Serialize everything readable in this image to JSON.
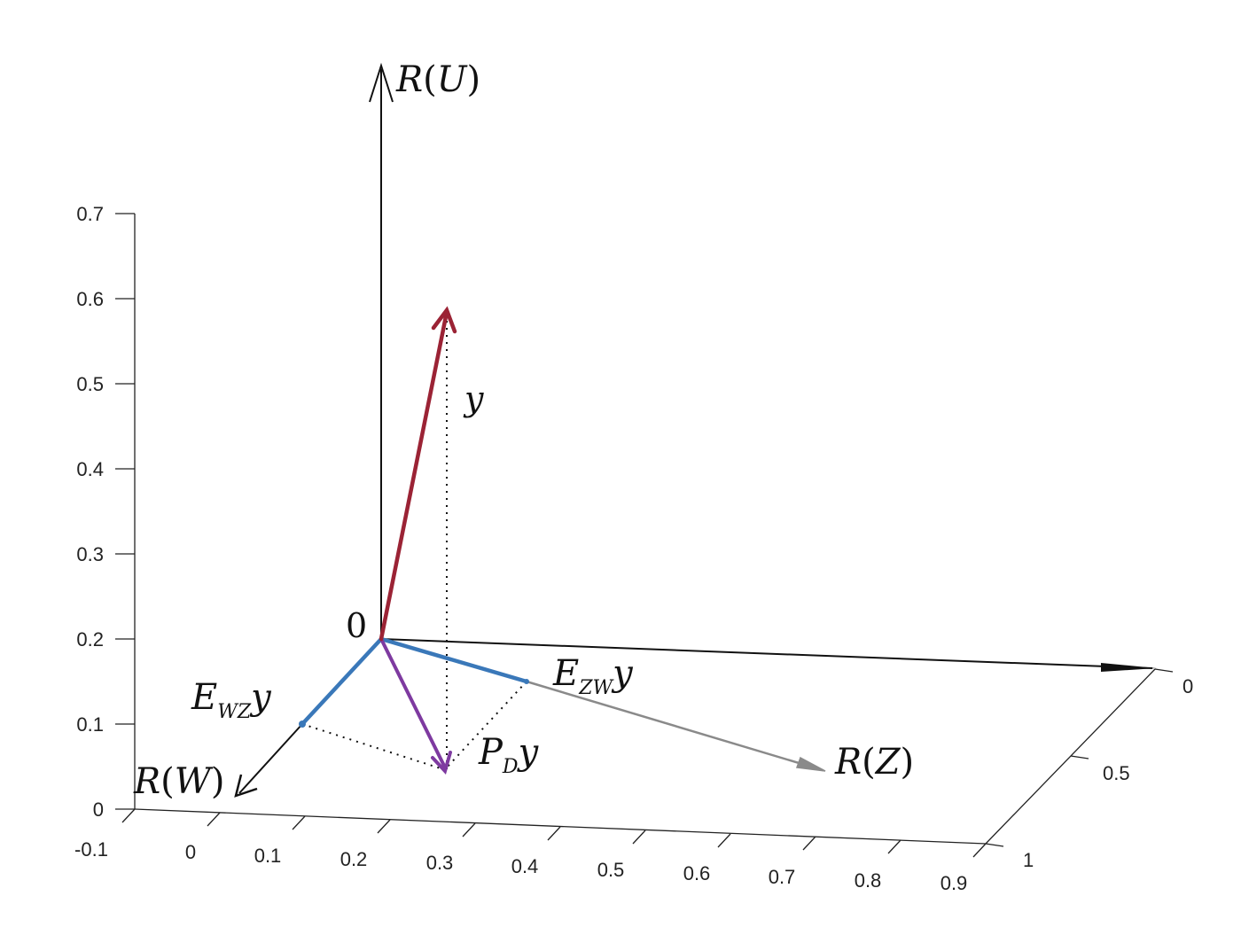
{
  "z_ticks": [
    "0.7",
    "0.6",
    "0.5",
    "0.4",
    "0.3",
    "0.2",
    "0.1",
    "0"
  ],
  "x_ticks": [
    "-0.1",
    "0",
    "0.1",
    "0.2",
    "0.3",
    "0.4",
    "0.5",
    "0.6",
    "0.7",
    "0.8",
    "0.9"
  ],
  "y_ticks": [
    "0",
    "0.5",
    "1"
  ],
  "labels": {
    "origin": "0",
    "y": "y",
    "ru": {
      "R": "R",
      "open": "(",
      "arg": "U",
      "close": ")"
    },
    "rw": {
      "R": "R",
      "open": "(",
      "arg": "W",
      "close": ")"
    },
    "rz": {
      "R": "R",
      "open": "(",
      "arg": "Z",
      "close": ")"
    },
    "ezw": {
      "main": "E",
      "sub": "ZW",
      "tail": "y"
    },
    "ewz": {
      "main": "E",
      "sub": "WZ",
      "tail": "y"
    },
    "pd": {
      "main": "P",
      "sub": "D",
      "tail": "y"
    }
  },
  "colors": {
    "y_vector": "#9b2335",
    "projection": "#3a78b9",
    "pd_vector": "#7e3aa0",
    "rz_axis": "#8a8a8a",
    "axes": "#111111"
  }
}
